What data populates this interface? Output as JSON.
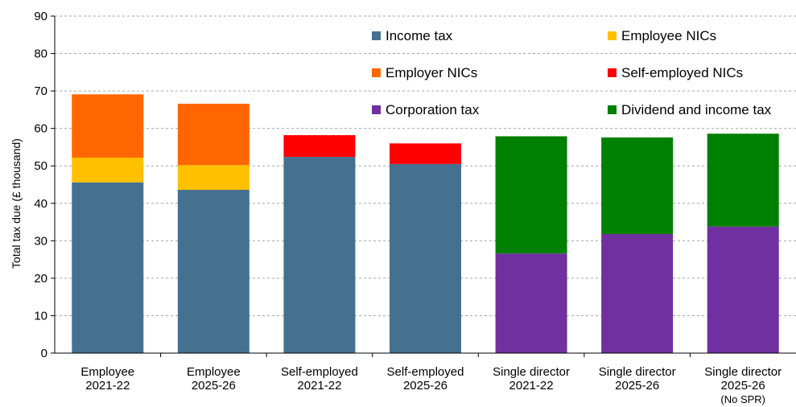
{
  "chart_data": {
    "type": "bar",
    "stacked": true,
    "title": "",
    "xlabel": "",
    "ylabel": "Total tax due (£ thousand)",
    "ylim": [
      0,
      90
    ],
    "yticks": [
      0,
      10,
      20,
      30,
      40,
      50,
      60,
      70,
      80,
      90
    ],
    "grid": true,
    "legend_position": "top-right",
    "categories": [
      [
        "Employee",
        "2021-22"
      ],
      [
        "Employee",
        "2025-26"
      ],
      [
        "Self-employed",
        "2021-22"
      ],
      [
        "Self-employed",
        "2025-26"
      ],
      [
        "Single director",
        "2021-22"
      ],
      [
        "Single director",
        "2025-26"
      ],
      [
        "Single director",
        "2025-26",
        "(No SPR)"
      ]
    ],
    "series": [
      {
        "name": "Income tax",
        "color": "#44718F",
        "values": [
          45.6,
          43.6,
          52.4,
          50.5,
          0,
          0,
          0
        ]
      },
      {
        "name": "Employee NICs",
        "color": "#FFC000",
        "values": [
          6.6,
          6.6,
          0,
          0,
          0,
          0,
          0
        ]
      },
      {
        "name": "Employer NICs",
        "color": "#FF6600",
        "values": [
          16.9,
          16.4,
          0,
          0,
          0,
          0,
          0
        ]
      },
      {
        "name": "Self-employed NICs",
        "color": "#FF0000",
        "values": [
          0,
          0,
          5.8,
          5.5,
          0,
          0,
          0
        ]
      },
      {
        "name": "Corporation tax",
        "color": "#7030A0",
        "values": [
          0,
          0,
          0,
          0,
          26.6,
          31.8,
          33.8
        ]
      },
      {
        "name": "Dividend and income tax",
        "color": "#008000",
        "values": [
          0,
          0,
          0,
          0,
          31.3,
          25.8,
          24.8
        ]
      }
    ]
  }
}
